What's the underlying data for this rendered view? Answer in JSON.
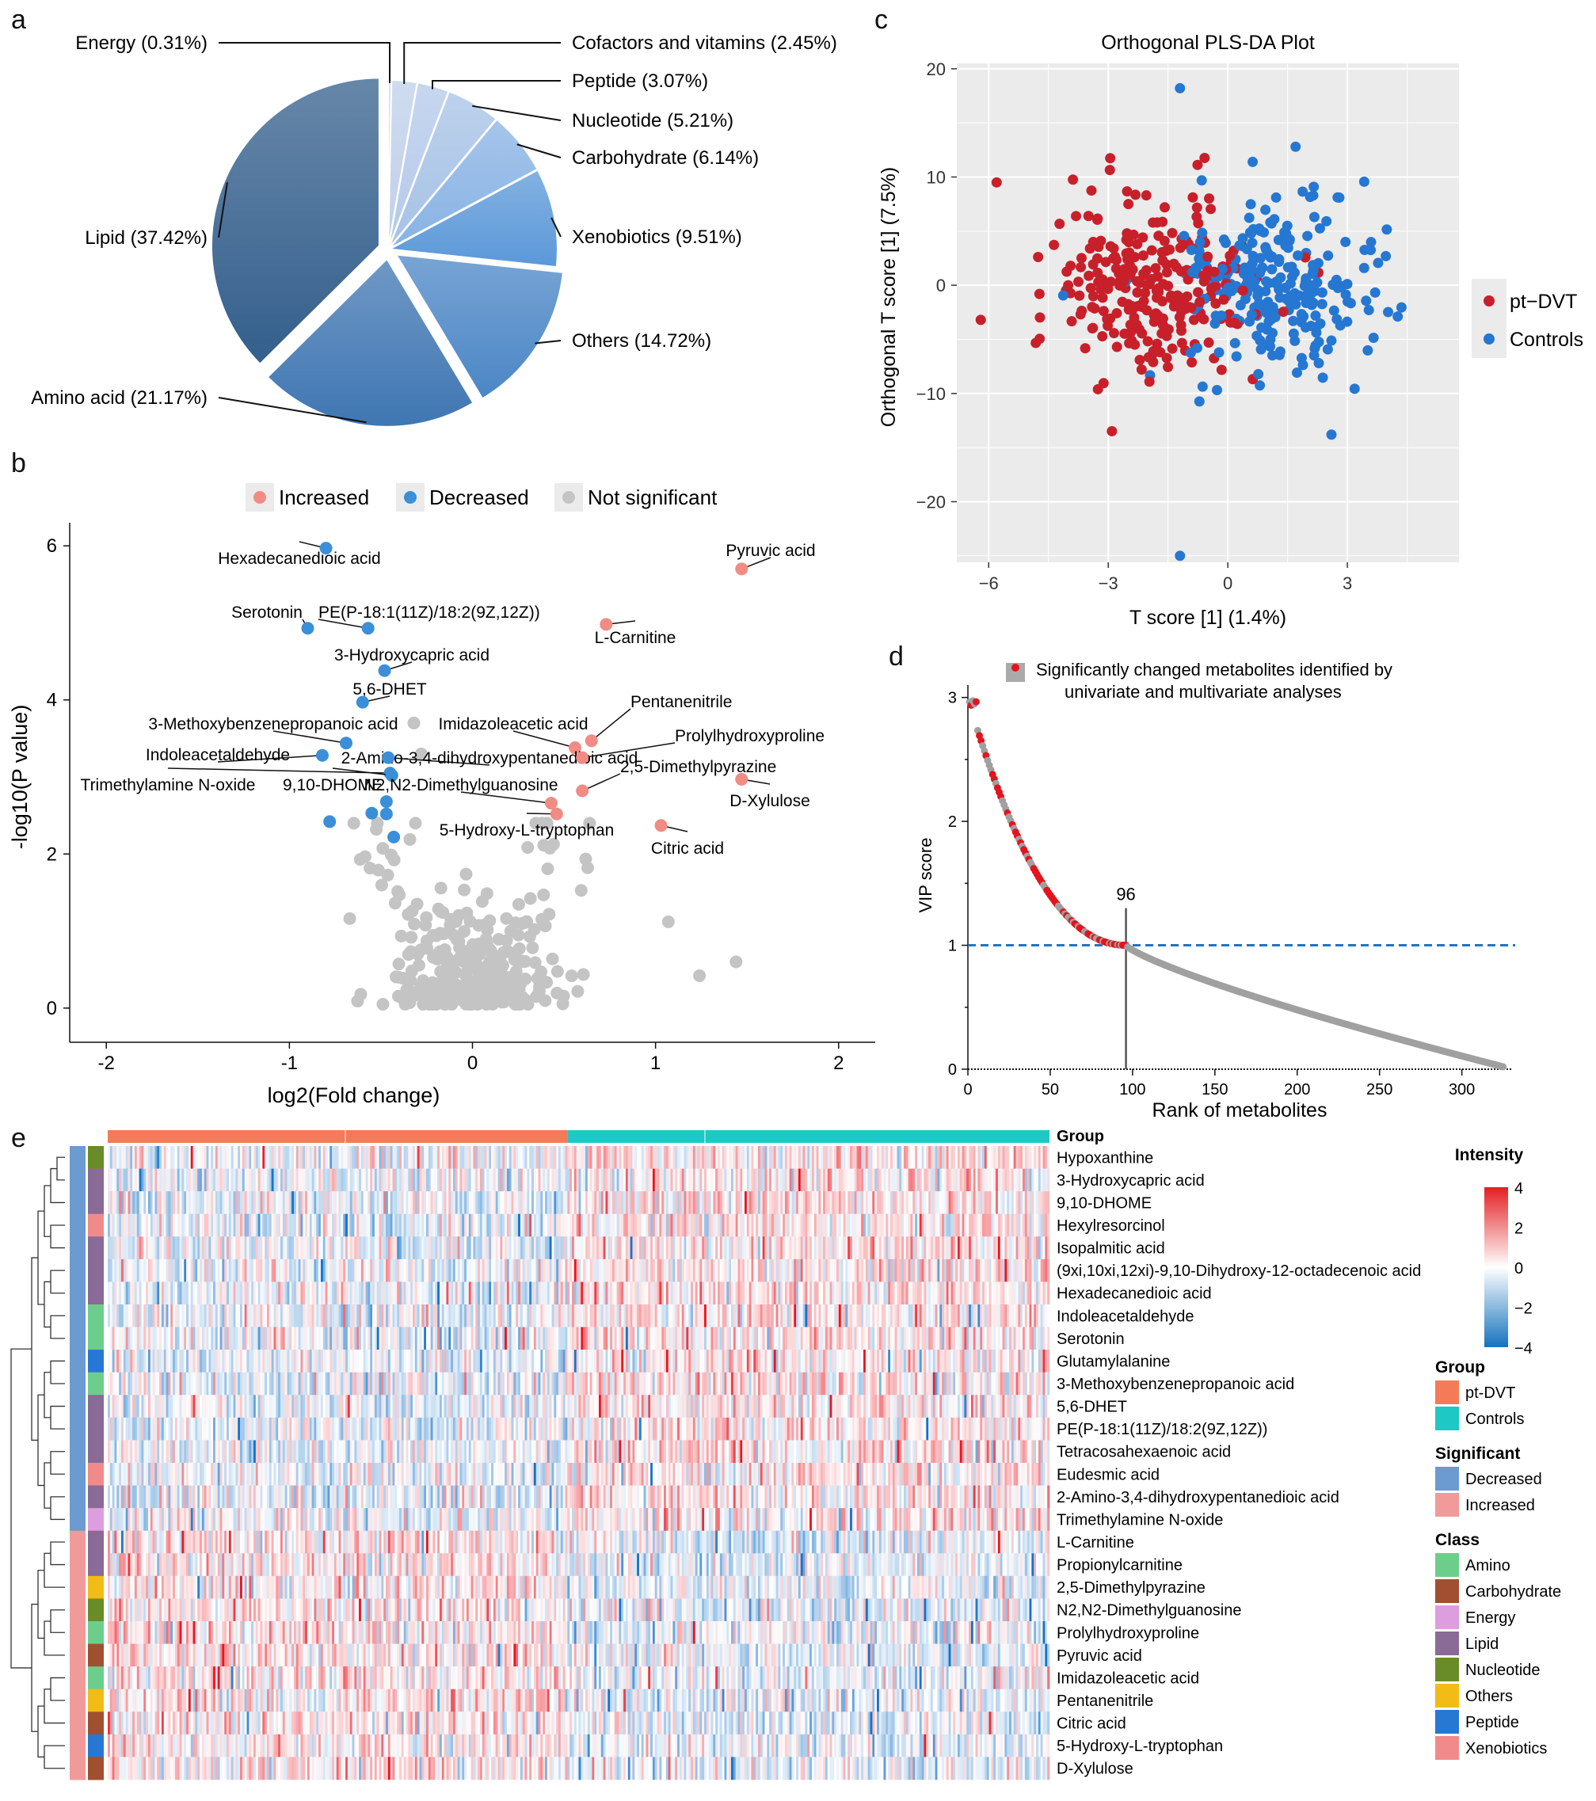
{
  "panels": {
    "a": "a",
    "b": "b",
    "c": "c",
    "d": "d",
    "e": "e"
  },
  "chart_data": [
    {
      "id": "a",
      "type": "pie",
      "title": "",
      "slices": [
        {
          "label": "Energy (0.31%)",
          "value": 0.31,
          "color": "#c9d6ea"
        },
        {
          "label": "Cofactors and vitamins (2.45%)",
          "value": 2.45,
          "color": "#bfd0ea"
        },
        {
          "label": "Peptide (3.07%)",
          "value": 3.07,
          "color": "#b4c9ea"
        },
        {
          "label": "Nucleotide (5.21%)",
          "value": 5.21,
          "color": "#a6c2e6"
        },
        {
          "label": "Carbohydrate (6.14%)",
          "value": 6.14,
          "color": "#88b2e4"
        },
        {
          "label": "Xenobiotics (9.51%)",
          "value": 9.51,
          "color": "#5b98d8"
        },
        {
          "label": "Others (14.72%)",
          "value": 14.72,
          "color": "#4b86c6"
        },
        {
          "label": "Amino acid (21.17%)",
          "value": 21.17,
          "color": "#3f76b2"
        },
        {
          "label": "Lipid (37.42%)",
          "value": 37.42,
          "color": "#345f8c"
        }
      ]
    },
    {
      "id": "b",
      "type": "scatter",
      "xlabel": "log2(Fold change)",
      "ylabel": "-log10(P value)",
      "xlim": [
        -2.2,
        2.2
      ],
      "ylim": [
        -0.3,
        6.3
      ],
      "xticks": [
        "-2",
        "-1",
        "0",
        "1",
        "2"
      ],
      "yticks": [
        "0",
        "2",
        "4",
        "6"
      ],
      "legend": [
        {
          "label": "Increased",
          "color": "#f08c84"
        },
        {
          "label": "Decreased",
          "color": "#3a8fd8"
        },
        {
          "label": "Not significant",
          "color": "#c4c4c4"
        }
      ],
      "points": [
        {
          "x": -0.8,
          "y": 5.97,
          "group": "Decreased",
          "label": "Hexadecanedioic acid"
        },
        {
          "x": 1.47,
          "y": 5.7,
          "group": "Increased",
          "label": "Pyruvic acid"
        },
        {
          "x": -0.9,
          "y": 4.93,
          "group": "Decreased",
          "label": "Serotonin"
        },
        {
          "x": -0.57,
          "y": 4.93,
          "group": "Decreased",
          "label": "PE(P-18:1(11Z)/18:2(9Z,12Z))"
        },
        {
          "x": 0.73,
          "y": 4.98,
          "group": "Increased",
          "label": "L-Carnitine"
        },
        {
          "x": -0.48,
          "y": 4.38,
          "group": "Decreased",
          "label": "3-Hydroxycapric acid"
        },
        {
          "x": -0.6,
          "y": 3.97,
          "group": "Decreased",
          "label": "5,6-DHET"
        },
        {
          "x": 0.65,
          "y": 3.47,
          "group": "Increased",
          "label": "Pentanenitrile"
        },
        {
          "x": -0.69,
          "y": 3.44,
          "group": "Decreased",
          "label": "3-Methoxybenzenepropanoic acid"
        },
        {
          "x": 0.56,
          "y": 3.38,
          "group": "Increased",
          "label": "Imidazoleacetic acid"
        },
        {
          "x": -0.46,
          "y": 3.25,
          "group": "Decreased",
          "label": "2-Amino-3,4-dihydroxypentanedioic acid"
        },
        {
          "x": -0.82,
          "y": 3.28,
          "group": "Decreased",
          "label": "Indoleacetaldehyde"
        },
        {
          "x": 0.6,
          "y": 3.25,
          "group": "Increased",
          "label": "Prolylhydroxyproline"
        },
        {
          "x": 1.47,
          "y": 2.97,
          "group": "Increased",
          "label": "D-Xylulose"
        },
        {
          "x": -0.45,
          "y": 3.05,
          "group": "Decreased",
          "label": "Trimethylamine N-oxide"
        },
        {
          "x": -0.44,
          "y": 3.02,
          "group": "Decreased",
          "label": "9,10-DHOME"
        },
        {
          "x": 0.6,
          "y": 2.82,
          "group": "Increased",
          "label": "2,5-Dimethylpyrazine"
        },
        {
          "x": 0.43,
          "y": 2.66,
          "group": "Increased",
          "label": "N2,N2-Dimethylguanosine"
        },
        {
          "x": 0.46,
          "y": 2.52,
          "group": "Increased",
          "label": "5-Hydroxy-L-tryptophan"
        },
        {
          "x": 1.03,
          "y": 2.37,
          "group": "Increased",
          "label": "Citric acid"
        },
        {
          "x": -0.78,
          "y": 2.42,
          "group": "Decreased",
          "label": ""
        },
        {
          "x": -0.55,
          "y": 2.53,
          "group": "Decreased",
          "label": ""
        },
        {
          "x": -0.47,
          "y": 2.52,
          "group": "Decreased",
          "label": ""
        },
        {
          "x": -0.43,
          "y": 2.22,
          "group": "Decreased",
          "label": ""
        },
        {
          "x": -0.47,
          "y": 2.68,
          "group": "Decreased",
          "label": ""
        }
      ]
    },
    {
      "id": "c",
      "type": "scatter",
      "title": "Orthogonal PLS-DA Plot",
      "xlabel": "T score [1] (1.4%)",
      "ylabel": "Orthogonal T score [1] (7.5%)",
      "xlim": [
        -6.8,
        5.8
      ],
      "ylim": [
        -25.6,
        20.5
      ],
      "xticks": [
        "-6",
        "-3",
        "0",
        "3"
      ],
      "yticks": [
        "-20",
        "-10",
        "0",
        "10",
        "20"
      ],
      "legend": [
        {
          "label": "pt−DVT",
          "color": "#c8202a"
        },
        {
          "label": "Controls",
          "color": "#2577d2"
        }
      ],
      "n_points_per_group": 260
    },
    {
      "id": "d",
      "type": "line",
      "xlabel": "Rank of metabolites",
      "ylabel": "VIP score",
      "xlim": [
        0,
        330
      ],
      "ylim": [
        0,
        3.1
      ],
      "xticks": [
        "0",
        "50",
        "100",
        "150",
        "200",
        "250",
        "300"
      ],
      "yticks": [
        "0",
        "1",
        "2",
        "3"
      ],
      "threshold": 1,
      "cutoff_rank": 96,
      "cutoff_label": "96",
      "n_metabolites": 325,
      "legend": "Significantly changed metabolites identified by univariate and multivariate analyses",
      "legend_line2": "univariate and multivariate analyses",
      "legend_line1": "Significantly changed metabolites identified by"
    },
    {
      "id": "e",
      "type": "heatmap",
      "legend_title": "Intensity",
      "scale": [
        4,
        2,
        0,
        -2,
        -4
      ],
      "scale_labels": [
        "4",
        "2",
        "0",
        "−2",
        "−4"
      ],
      "group_title": "Group",
      "groups": [
        {
          "label": "pt-DVT",
          "color": "#f47a58"
        },
        {
          "label": "Controls",
          "color": "#1ec8c4"
        }
      ],
      "significant_title": "Significant",
      "significant": [
        {
          "label": "Decreased",
          "color": "#6b9bd0"
        },
        {
          "label": "Increased",
          "color": "#f19a9a"
        }
      ],
      "class_title": "Class",
      "classes": [
        {
          "label": "Amino",
          "color": "#6dce8c"
        },
        {
          "label": "Carbohydrate",
          "color": "#a05030"
        },
        {
          "label": "Energy",
          "color": "#dd9ede"
        },
        {
          "label": "Lipid",
          "color": "#8a6a96"
        },
        {
          "label": "Nucleotide",
          "color": "#6a8c28"
        },
        {
          "label": "Others",
          "color": "#f3bb16"
        },
        {
          "label": "Peptide",
          "color": "#2778d2"
        },
        {
          "label": "Xenobiotics",
          "color": "#f18a8a"
        }
      ],
      "rows": [
        {
          "label": "Hypoxanthine",
          "significant": "Decreased",
          "class": "Nucleotide"
        },
        {
          "label": "3-Hydroxycapric acid",
          "significant": "Decreased",
          "class": "Lipid"
        },
        {
          "label": "9,10-DHOME",
          "significant": "Decreased",
          "class": "Lipid"
        },
        {
          "label": "Hexylresorcinol",
          "significant": "Decreased",
          "class": "Xenobiotics"
        },
        {
          "label": "Isopalmitic acid",
          "significant": "Decreased",
          "class": "Lipid"
        },
        {
          "label": "(9xi,10xi,12xi)-9,10-Dihydroxy-12-octadecenoic acid",
          "significant": "Decreased",
          "class": "Lipid"
        },
        {
          "label": "Hexadecanedioic acid",
          "significant": "Decreased",
          "class": "Lipid"
        },
        {
          "label": "Indoleacetaldehyde",
          "significant": "Decreased",
          "class": "Amino"
        },
        {
          "label": "Serotonin",
          "significant": "Decreased",
          "class": "Amino"
        },
        {
          "label": "Glutamylalanine",
          "significant": "Decreased",
          "class": "Peptide"
        },
        {
          "label": "3-Methoxybenzenepropanoic acid",
          "significant": "Decreased",
          "class": "Amino"
        },
        {
          "label": "5,6-DHET",
          "significant": "Decreased",
          "class": "Lipid"
        },
        {
          "label": "PE(P-18:1(11Z)/18:2(9Z,12Z))",
          "significant": "Decreased",
          "class": "Lipid"
        },
        {
          "label": "Tetracosahexaenoic acid",
          "significant": "Decreased",
          "class": "Lipid"
        },
        {
          "label": "Eudesmic acid",
          "significant": "Decreased",
          "class": "Xenobiotics"
        },
        {
          "label": "2-Amino-3,4-dihydroxypentanedioic acid",
          "significant": "Decreased",
          "class": "Lipid"
        },
        {
          "label": "Trimethylamine N-oxide",
          "significant": "Decreased",
          "class": "Energy"
        },
        {
          "label": "L-Carnitine",
          "significant": "Increased",
          "class": "Lipid"
        },
        {
          "label": "Propionylcarnitine",
          "significant": "Increased",
          "class": "Lipid"
        },
        {
          "label": "2,5-Dimethylpyrazine",
          "significant": "Increased",
          "class": "Others"
        },
        {
          "label": "N2,N2-Dimethylguanosine",
          "significant": "Increased",
          "class": "Nucleotide"
        },
        {
          "label": "Prolylhydroxyproline",
          "significant": "Increased",
          "class": "Amino"
        },
        {
          "label": "Pyruvic acid",
          "significant": "Increased",
          "class": "Carbohydrate"
        },
        {
          "label": "Imidazoleacetic acid",
          "significant": "Increased",
          "class": "Amino"
        },
        {
          "label": "Pentanenitrile",
          "significant": "Increased",
          "class": "Others"
        },
        {
          "label": "Citric acid",
          "significant": "Increased",
          "class": "Carbohydrate"
        },
        {
          "label": "5-Hydroxy-L-tryptophan",
          "significant": "Increased",
          "class": "Peptide"
        },
        {
          "label": "D-Xylulose",
          "significant": "Increased",
          "class": "Carbohydrate"
        }
      ],
      "n_columns": 420,
      "n_ptdvt_columns": 205
    }
  ]
}
